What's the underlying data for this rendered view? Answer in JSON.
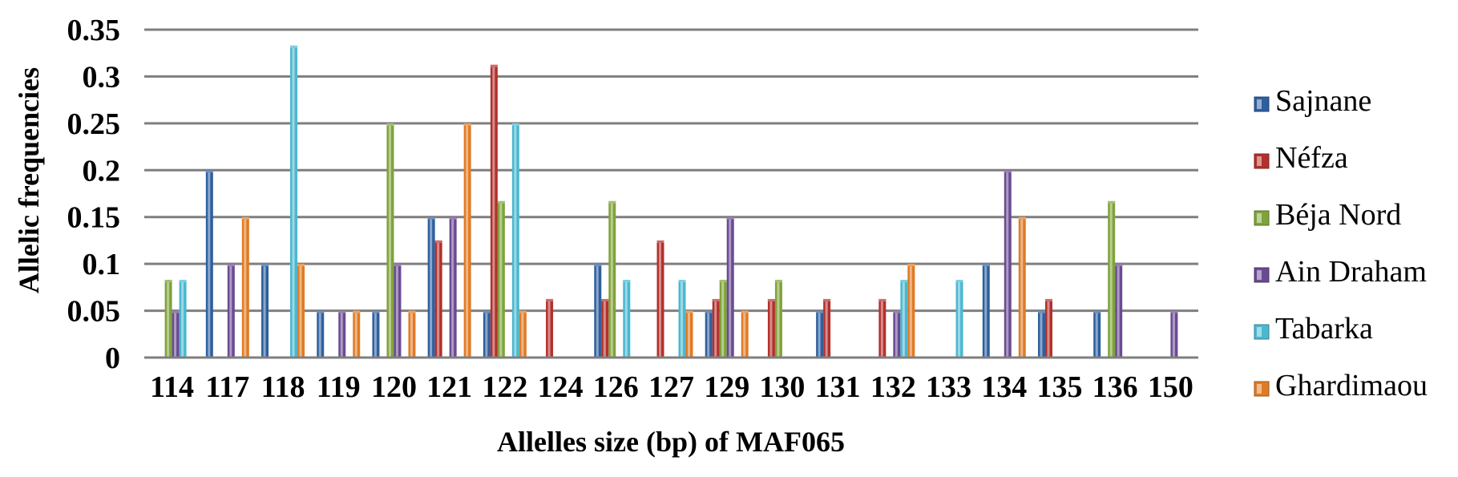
{
  "chart_data": {
    "type": "bar",
    "title": "",
    "xlabel": "Allelles size (bp)  of MAF065",
    "ylabel": "Allelic frequencies",
    "ylim": [
      0,
      0.35
    ],
    "yticks": [
      "0",
      "0.05",
      "0.1",
      "0.15",
      "0.2",
      "0.25",
      "0.3",
      "0.35"
    ],
    "grid": true,
    "legend_position": "right",
    "categories": [
      "114",
      "117",
      "118",
      "119",
      "120",
      "121",
      "122",
      "124",
      "126",
      "127",
      "129",
      "130",
      "131",
      "132",
      "133",
      "134",
      "135",
      "136",
      "150"
    ],
    "series": [
      {
        "name": "Sajnane",
        "color": "#2e5f9e",
        "values": [
          0,
          0.2,
          0.1,
          0.05,
          0.05,
          0.15,
          0.05,
          0,
          0.1,
          0,
          0.05,
          0,
          0.05,
          0,
          0,
          0.1,
          0.05,
          0.05,
          0
        ]
      },
      {
        "name": "Néfza",
        "color": "#b3302c",
        "values": [
          0,
          0,
          0,
          0,
          0,
          0.125,
          0.3125,
          0.0625,
          0.0625,
          0.125,
          0.0625,
          0.0625,
          0.0625,
          0.0625,
          0,
          0,
          0.0625,
          0,
          0
        ]
      },
      {
        "name": "Béja Nord",
        "color": "#7fa33a",
        "values": [
          0.083,
          0,
          0,
          0,
          0.25,
          0,
          0.167,
          0,
          0.167,
          0,
          0.083,
          0.083,
          0,
          0,
          0,
          0,
          0,
          0.167,
          0
        ]
      },
      {
        "name": "Ain Draham",
        "color": "#6a4a92",
        "values": [
          0.05,
          0.1,
          0,
          0.05,
          0.1,
          0.15,
          0,
          0,
          0,
          0,
          0.15,
          0,
          0,
          0.05,
          0,
          0.2,
          0,
          0.1,
          0.05
        ]
      },
      {
        "name": "Tabarka",
        "color": "#4bb8d0",
        "values": [
          0.083,
          0,
          0.333,
          0,
          0,
          0,
          0.25,
          0,
          0.083,
          0.083,
          0,
          0,
          0,
          0.083,
          0.083,
          0,
          0,
          0,
          0
        ]
      },
      {
        "name": "Ghardimaou",
        "color": "#e07b25",
        "values": [
          0,
          0.15,
          0.1,
          0.05,
          0.05,
          0.25,
          0.05,
          0,
          0,
          0.05,
          0.05,
          0,
          0,
          0.1,
          0,
          0.15,
          0,
          0,
          0
        ]
      }
    ]
  }
}
